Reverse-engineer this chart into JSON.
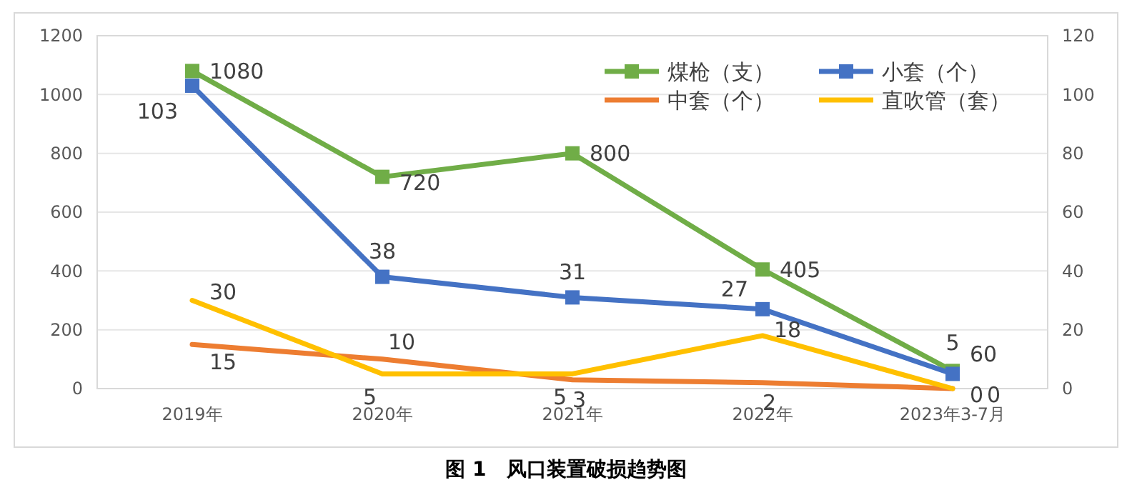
{
  "chart_data": {
    "type": "line",
    "categories": [
      "2019年",
      "2020年",
      "2021年",
      "2022年",
      "2023年3-7月"
    ],
    "series": [
      {
        "name": "煤枪（支）",
        "color": "#70ad47",
        "values": [
          1080,
          720,
          800,
          405,
          60
        ],
        "marker": "square"
      },
      {
        "name": "小套（个）",
        "color": "#4472c4",
        "values": [
          103,
          38,
          31,
          27,
          5
        ],
        "axis": "y2",
        "marker": "square"
      },
      {
        "name": "中套（个）",
        "color": "#ed7d31",
        "values": [
          15,
          10,
          3,
          2,
          0
        ],
        "axis": "y2",
        "marker": "none"
      },
      {
        "name": "直吹管（套）",
        "color": "#ffc000",
        "values": [
          30,
          5,
          5,
          18,
          0
        ],
        "axis": "y2",
        "marker": "none"
      }
    ],
    "ylim": [
      0,
      1200
    ],
    "yticks": [
      0,
      200,
      400,
      600,
      800,
      1000,
      1200
    ],
    "y2lim": [
      0,
      120
    ],
    "y2ticks": [
      0,
      20,
      40,
      60,
      80,
      100,
      120
    ],
    "grid": "y",
    "legend": "top right",
    "data_labels": true,
    "line_style": "solid",
    "annotations": [
      "图 1　风口装置破损趋势图"
    ]
  }
}
